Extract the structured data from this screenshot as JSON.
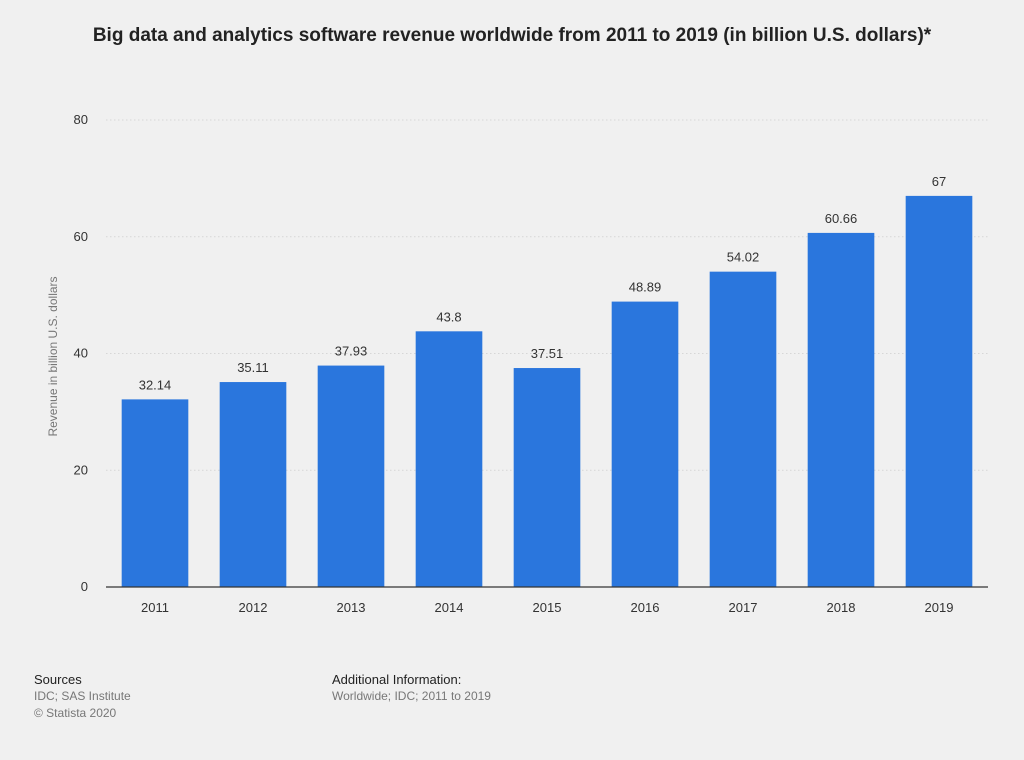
{
  "chart_data": {
    "type": "bar",
    "title": "Big data and analytics software revenue worldwide from 2011 to 2019 (in billion U.S. dollars)*",
    "xlabel": "",
    "ylabel": "Revenue in billion U.S. dollars",
    "categories": [
      "2011",
      "2012",
      "2013",
      "2014",
      "2015",
      "2016",
      "2017",
      "2018",
      "2019"
    ],
    "values": [
      32.14,
      35.11,
      37.93,
      43.8,
      37.51,
      48.89,
      54.02,
      60.66,
      67
    ],
    "data_labels": [
      "32.14",
      "35.11",
      "37.93",
      "43.8",
      "37.51",
      "48.89",
      "54.02",
      "60.66",
      "67"
    ],
    "ylim": [
      0,
      80
    ],
    "yticks": [
      0,
      20,
      40,
      60,
      80
    ],
    "grid": true,
    "colors": {
      "bar": "#2a76dd",
      "grid": "#d6d6d6",
      "axis": "#333333",
      "tick_text": "#333333",
      "label_text": "#333333"
    }
  },
  "footer": {
    "sources_heading": "Sources",
    "sources_lines": [
      "IDC; SAS Institute",
      "© Statista 2020"
    ],
    "additional_heading": "Additional Information:",
    "additional_lines": [
      "Worldwide; IDC; 2011 to 2019"
    ]
  }
}
